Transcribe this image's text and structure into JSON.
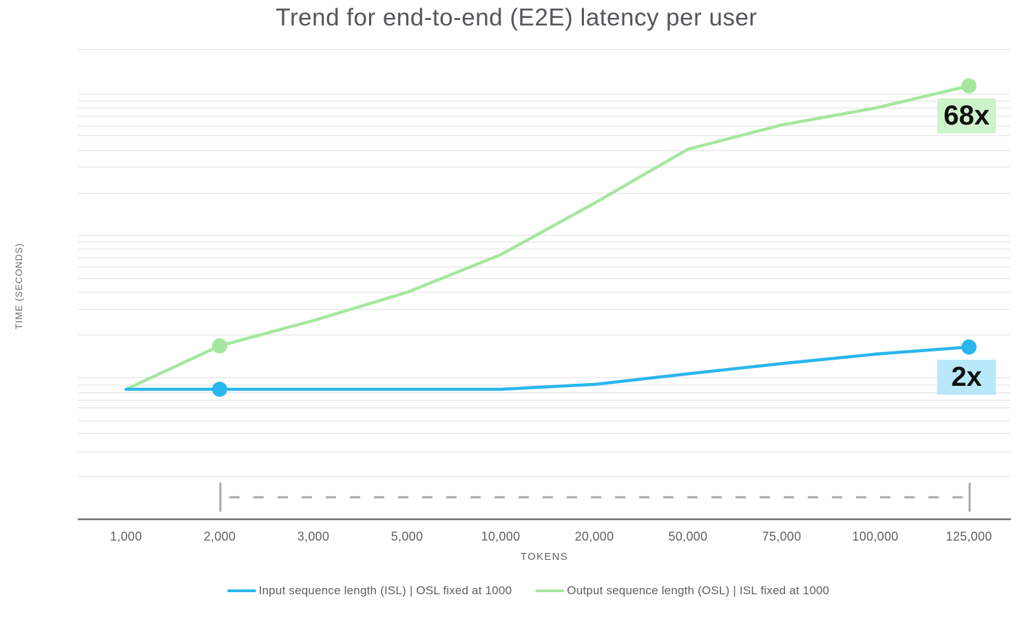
{
  "title": "Trend for end-to-end (E2E) latency per user",
  "chart_data": {
    "type": "line",
    "title": "Trend for end-to-end (E2E) latency per user",
    "xlabel": "TOKENS",
    "ylabel": "TIME (SECONDS)",
    "x_categories": [
      "1,000",
      "2,000",
      "3,000",
      "5,000",
      "10,000",
      "20,000",
      "50,000",
      "75,000",
      "100,000",
      "125,000"
    ],
    "y_axis_note": "logarithmic time scale, no numeric tick labels shown",
    "grid": "horizontal light-gray log minor gridlines",
    "legend_position": "bottom-center",
    "series": [
      {
        "name": "Input sequence length (ISL) | OSL fixed at 1000",
        "color": "#2ab6ee",
        "relative_latency_multiplier": [
          1,
          1,
          1,
          1,
          1,
          1.07,
          1.24,
          1.43,
          1.63,
          1.8
        ],
        "markers_at": [
          "2,000",
          "125,000"
        ],
        "annotation": {
          "text": "2x",
          "bg": "#b9e8f8"
        }
      },
      {
        "name": "Output sequence length (OSL) | ISL fixed at 1000",
        "color": "#a5e79e",
        "relative_latency_multiplier": [
          1,
          1.83,
          2.6,
          3.85,
          6.5,
          13.3,
          28.2,
          39.5,
          50,
          68
        ],
        "markers_at": [
          "2,000",
          "125,000"
        ],
        "annotation": {
          "text": "68x",
          "bg": "#cdf3cb"
        }
      }
    ],
    "dashed_range_marker": {
      "from_category": "2,000",
      "to_category": "125,000"
    }
  }
}
